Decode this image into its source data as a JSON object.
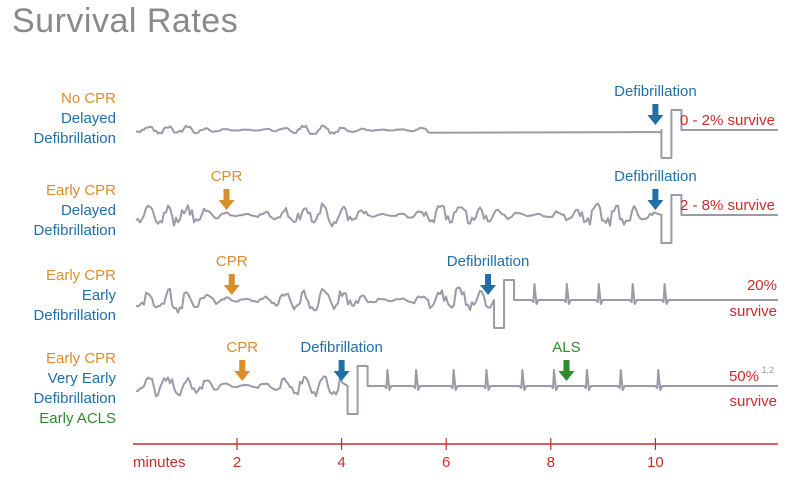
{
  "title": "Survival Rates",
  "colors": {
    "orange": "#d98e2b",
    "blue": "#1f6fa9",
    "green": "#2e8b2e",
    "red": "#cc2a2a",
    "ecg": "#9a9aa8",
    "footnote": "#9b9b9b"
  },
  "rows": [
    {
      "label": [
        {
          "text": "No CPR",
          "color": "orange"
        },
        {
          "text": "Delayed",
          "color": "blue"
        },
        {
          "text": "Defibrillation",
          "color": "blue"
        }
      ],
      "markers": [
        {
          "text": "Defibrillation",
          "color": "blue",
          "minute": 10
        }
      ],
      "outcome": [
        "0 - 2% survive"
      ]
    },
    {
      "label": [
        {
          "text": "Early CPR",
          "color": "orange"
        },
        {
          "text": "Delayed",
          "color": "blue"
        },
        {
          "text": "Defibrillation",
          "color": "blue"
        }
      ],
      "markers": [
        {
          "text": "CPR",
          "color": "orange",
          "minute": 1.8
        },
        {
          "text": "Defibrillation",
          "color": "blue",
          "minute": 10
        }
      ],
      "outcome": [
        "2 - 8% survive"
      ]
    },
    {
      "label": [
        {
          "text": "Early CPR",
          "color": "orange"
        },
        {
          "text": "Early",
          "color": "blue"
        },
        {
          "text": "Defibrillation",
          "color": "blue"
        }
      ],
      "markers": [
        {
          "text": "CPR",
          "color": "orange",
          "minute": 1.9
        },
        {
          "text": "Defibrillation",
          "color": "blue",
          "minute": 6.8
        }
      ],
      "outcome": [
        "20%",
        "survive"
      ]
    },
    {
      "label": [
        {
          "text": "Early CPR",
          "color": "orange"
        },
        {
          "text": "Very Early",
          "color": "blue"
        },
        {
          "text": "Defibrillation",
          "color": "blue"
        },
        {
          "text": "Early ACLS",
          "color": "green"
        }
      ],
      "markers": [
        {
          "text": "CPR",
          "color": "orange",
          "minute": 2.1
        },
        {
          "text": "Defibrillation",
          "color": "blue",
          "minute": 4
        },
        {
          "text": "ALS",
          "color": "green",
          "minute": 8.3
        }
      ],
      "outcome": [
        "50%",
        "survive"
      ],
      "footnote": "1,2"
    }
  ],
  "axis": {
    "label": "minutes",
    "ticks": [
      2,
      4,
      6,
      8,
      10
    ]
  }
}
